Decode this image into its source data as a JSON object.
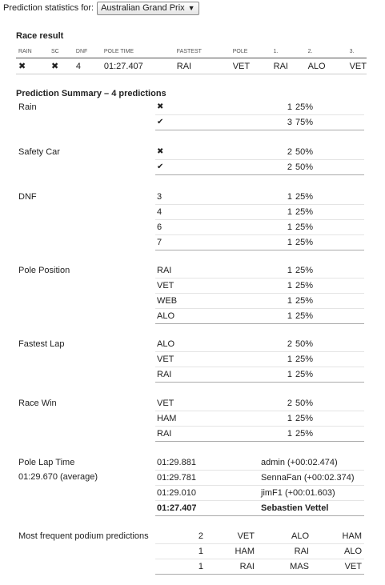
{
  "header": {
    "label": "Prediction statistics for:",
    "race_select": "Australian Grand Prix"
  },
  "race_result": {
    "title": "Race result",
    "columns": [
      "RAIN",
      "SC",
      "DNF",
      "POLE TIME",
      "FASTEST",
      "POLE",
      "1.",
      "2.",
      "3."
    ],
    "row": {
      "rain": "✖",
      "sc": "✖",
      "dnf": "4",
      "pole_time": "01:27.407",
      "fastest": "RAI",
      "pole": "VET",
      "p1": "RAI",
      "p2": "ALO",
      "p3": "VET"
    }
  },
  "summary": {
    "title": "Prediction Summary – 4 predictions",
    "rain": {
      "label": "Rain",
      "rows": [
        {
          "value": "✖",
          "count": "1",
          "pct": "25%"
        },
        {
          "value": "✔",
          "count": "3",
          "pct": "75%"
        }
      ]
    },
    "safety_car": {
      "label": "Safety Car",
      "rows": [
        {
          "value": "✖",
          "count": "2",
          "pct": "50%"
        },
        {
          "value": "✔",
          "count": "2",
          "pct": "50%"
        }
      ]
    },
    "dnf": {
      "label": "DNF",
      "rows": [
        {
          "value": "3",
          "count": "1",
          "pct": "25%"
        },
        {
          "value": "4",
          "count": "1",
          "pct": "25%"
        },
        {
          "value": "6",
          "count": "1",
          "pct": "25%"
        },
        {
          "value": "7",
          "count": "1",
          "pct": "25%"
        }
      ]
    },
    "pole": {
      "label": "Pole Position",
      "rows": [
        {
          "value": "RAI",
          "count": "1",
          "pct": "25%"
        },
        {
          "value": "VET",
          "count": "1",
          "pct": "25%"
        },
        {
          "value": "WEB",
          "count": "1",
          "pct": "25%"
        },
        {
          "value": "ALO",
          "count": "1",
          "pct": "25%"
        }
      ]
    },
    "fastest": {
      "label": "Fastest Lap",
      "rows": [
        {
          "value": "ALO",
          "count": "2",
          "pct": "50%"
        },
        {
          "value": "VET",
          "count": "1",
          "pct": "25%"
        },
        {
          "value": "RAI",
          "count": "1",
          "pct": "25%"
        }
      ]
    },
    "win": {
      "label": "Race Win",
      "rows": [
        {
          "value": "VET",
          "count": "2",
          "pct": "50%"
        },
        {
          "value": "HAM",
          "count": "1",
          "pct": "25%"
        },
        {
          "value": "RAI",
          "count": "1",
          "pct": "25%"
        }
      ]
    },
    "pole_time": {
      "label": "Pole Lap Time",
      "average": "01:29.670 (average)",
      "rows": [
        {
          "time": "01:29.881",
          "who": "admin (+00:02.474)"
        },
        {
          "time": "01:29.781",
          "who": "SennaFan (+00:02.374)"
        },
        {
          "time": "01:29.010",
          "who": "jimF1 (+00:01.603)"
        },
        {
          "time": "01:27.407",
          "who": "Sebastien Vettel"
        }
      ]
    },
    "podium": {
      "label": "Most frequent podium predictions",
      "rows": [
        {
          "count": "2",
          "p1": "VET",
          "p2": "ALO",
          "p3": "HAM"
        },
        {
          "count": "1",
          "p1": "HAM",
          "p2": "RAI",
          "p3": "ALO"
        },
        {
          "count": "1",
          "p1": "RAI",
          "p2": "MAS",
          "p3": "VET"
        }
      ]
    }
  }
}
